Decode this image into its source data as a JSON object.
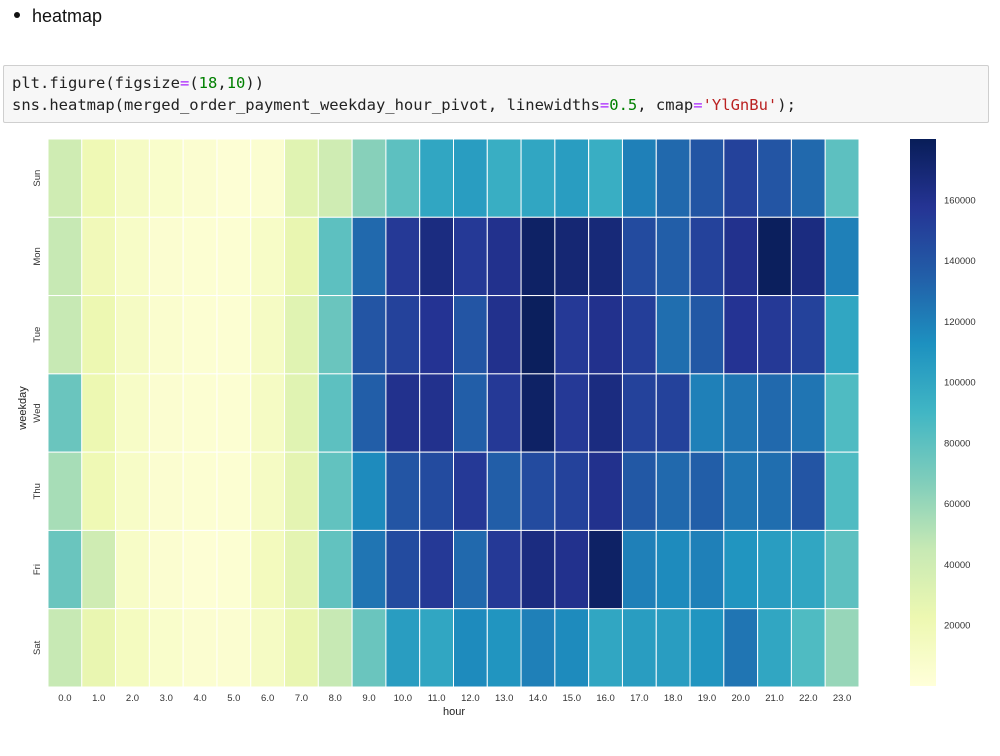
{
  "bullet": {
    "text": "heatmap"
  },
  "code": {
    "line1": {
      "a": "plt.figure(figsize",
      "eq": "=",
      "b": "(",
      "n1": "18",
      "c": ",",
      "n2": "10",
      "d": "))"
    },
    "line2": {
      "a": "sns.heatmap(merged_order_payment_weekday_hour_pivot, linewidths",
      "eq1": "=",
      "n1": "0.5",
      "b": ", cmap",
      "eq2": "=",
      "s": "'YlGnBu'",
      "c": ");"
    }
  },
  "colors": {
    "scale": [
      "#ffffd9",
      "#edf8b1",
      "#c7e9b4",
      "#7fcdbb",
      "#41b6c4",
      "#1d91c0",
      "#225ea8",
      "#253494",
      "#081d58"
    ],
    "cell_border": "#ffffff",
    "code_bg": "#f7f7f7"
  },
  "chart_data": {
    "type": "heatmap",
    "xlabel": "hour",
    "ylabel": "weekday",
    "x": [
      "0.0",
      "1.0",
      "2.0",
      "3.0",
      "4.0",
      "5.0",
      "6.0",
      "7.0",
      "8.0",
      "9.0",
      "10.0",
      "11.0",
      "12.0",
      "13.0",
      "14.0",
      "15.0",
      "16.0",
      "17.0",
      "18.0",
      "19.0",
      "20.0",
      "21.0",
      "22.0",
      "23.0"
    ],
    "y": [
      "Sun",
      "Mon",
      "Tue",
      "Wed",
      "Thu",
      "Fri",
      "Sat"
    ],
    "vmin": 0,
    "vmax": 180000,
    "colorbar_ticks": [
      20000,
      40000,
      60000,
      80000,
      100000,
      120000,
      140000,
      160000
    ],
    "values": [
      [
        40000,
        20000,
        12000,
        8000,
        5000,
        3000,
        5000,
        30000,
        40000,
        65000,
        80000,
        100000,
        105000,
        95000,
        100000,
        105000,
        95000,
        120000,
        130000,
        140000,
        150000,
        140000,
        130000,
        80000
      ],
      [
        45000,
        18000,
        10000,
        5000,
        4000,
        4000,
        10000,
        25000,
        80000,
        130000,
        155000,
        165000,
        155000,
        160000,
        175000,
        170000,
        168000,
        145000,
        135000,
        150000,
        160000,
        178000,
        165000,
        120000
      ],
      [
        45000,
        22000,
        12000,
        6000,
        4000,
        4000,
        12000,
        30000,
        75000,
        140000,
        150000,
        158000,
        140000,
        160000,
        178000,
        155000,
        160000,
        152000,
        128000,
        138000,
        158000,
        155000,
        150000,
        100000
      ],
      [
        75000,
        22000,
        10000,
        5000,
        4000,
        4000,
        12000,
        30000,
        80000,
        135000,
        160000,
        160000,
        135000,
        155000,
        175000,
        155000,
        165000,
        150000,
        150000,
        120000,
        125000,
        130000,
        125000,
        85000
      ],
      [
        55000,
        20000,
        10000,
        5000,
        4000,
        4000,
        12000,
        28000,
        78000,
        115000,
        140000,
        145000,
        155000,
        135000,
        145000,
        150000,
        160000,
        138000,
        130000,
        135000,
        125000,
        128000,
        140000,
        85000
      ],
      [
        75000,
        40000,
        10000,
        5000,
        3000,
        4000,
        15000,
        28000,
        78000,
        125000,
        145000,
        155000,
        130000,
        155000,
        165000,
        160000,
        175000,
        120000,
        115000,
        120000,
        110000,
        105000,
        100000,
        80000
      ],
      [
        45000,
        25000,
        14000,
        8000,
        5000,
        5000,
        12000,
        25000,
        45000,
        75000,
        105000,
        100000,
        115000,
        110000,
        120000,
        115000,
        100000,
        105000,
        105000,
        110000,
        125000,
        100000,
        85000,
        60000
      ]
    ]
  }
}
